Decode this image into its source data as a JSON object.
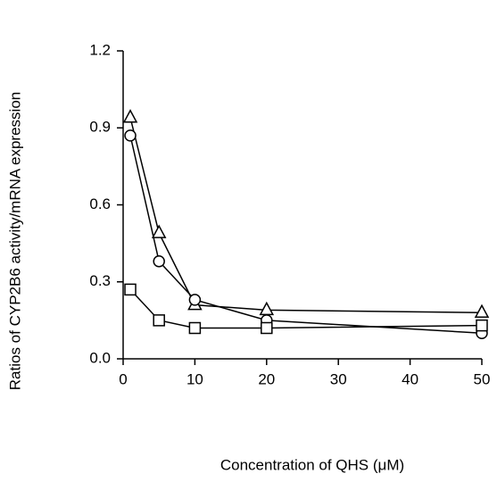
{
  "chart_data": {
    "type": "line",
    "x_label": "Concentration of QHS (μM)",
    "y_label": "Ratios of CYP2B6 activity/mRNA expression",
    "x": [
      1,
      5,
      10,
      20,
      50
    ],
    "series": [
      {
        "marker": "triangle",
        "color": "#000000",
        "values": [
          0.94,
          0.49,
          0.21,
          0.19,
          0.18
        ]
      },
      {
        "marker": "circle",
        "color": "#000000",
        "values": [
          0.87,
          0.38,
          0.23,
          0.15,
          0.1
        ]
      },
      {
        "marker": "square",
        "color": "#000000",
        "values": [
          0.27,
          0.15,
          0.12,
          0.12,
          0.13
        ]
      }
    ],
    "xlim": [
      0,
      50
    ],
    "xticks": [
      0,
      10,
      20,
      30,
      40,
      50
    ],
    "ylim": [
      0,
      1.2
    ],
    "yticks": [
      {
        "value": 0,
        "label": "0.0"
      },
      0.3,
      0.6,
      0.9,
      1.2
    ],
    "grid": false
  }
}
